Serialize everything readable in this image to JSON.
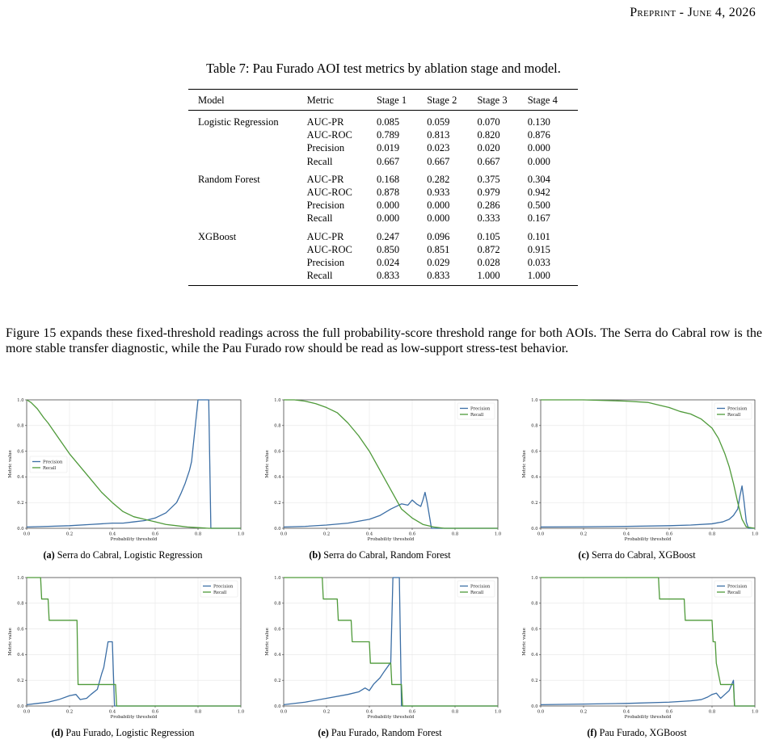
{
  "header": {
    "prefix": "Preprint - June 4, 2026"
  },
  "table": {
    "caption": "Table 7: Pau Furado AOI test metrics by ablation stage and model.",
    "columns": [
      "Model",
      "Metric",
      "Stage 1",
      "Stage 2",
      "Stage 3",
      "Stage 4"
    ],
    "groups": [
      {
        "model": "Logistic Regression",
        "rows": [
          {
            "metric": "AUC-PR",
            "values": [
              "0.085",
              "0.059",
              "0.070",
              "0.130"
            ]
          },
          {
            "metric": "AUC-ROC",
            "values": [
              "0.789",
              "0.813",
              "0.820",
              "0.876"
            ]
          },
          {
            "metric": "Precision",
            "values": [
              "0.019",
              "0.023",
              "0.020",
              "0.000"
            ]
          },
          {
            "metric": "Recall",
            "values": [
              "0.667",
              "0.667",
              "0.667",
              "0.000"
            ]
          }
        ]
      },
      {
        "model": "Random Forest",
        "rows": [
          {
            "metric": "AUC-PR",
            "values": [
              "0.168",
              "0.282",
              "0.375",
              "0.304"
            ]
          },
          {
            "metric": "AUC-ROC",
            "values": [
              "0.878",
              "0.933",
              "0.979",
              "0.942"
            ]
          },
          {
            "metric": "Precision",
            "values": [
              "0.000",
              "0.000",
              "0.286",
              "0.500"
            ]
          },
          {
            "metric": "Recall",
            "values": [
              "0.000",
              "0.000",
              "0.333",
              "0.167"
            ]
          }
        ]
      },
      {
        "model": "XGBoost",
        "rows": [
          {
            "metric": "AUC-PR",
            "values": [
              "0.247",
              "0.096",
              "0.105",
              "0.101"
            ]
          },
          {
            "metric": "AUC-ROC",
            "values": [
              "0.850",
              "0.851",
              "0.872",
              "0.915"
            ]
          },
          {
            "metric": "Precision",
            "values": [
              "0.024",
              "0.029",
              "0.028",
              "0.033"
            ]
          },
          {
            "metric": "Recall",
            "values": [
              "0.833",
              "0.833",
              "1.000",
              "1.000"
            ]
          }
        ]
      }
    ]
  },
  "paragraph": "Figure 15 expands these fixed-threshold readings across the full probability-score threshold range for both AOIs. The Serra do Cabral row is the more stable transfer diagnostic, while the Pau Furado row should be read as low-support stress-test behavior.",
  "colors": {
    "precision": "#3b6ea5",
    "recall": "#4f9a3a",
    "grid": "#e6e6e6"
  },
  "chart_data": [
    {
      "id": "a",
      "type": "line",
      "letter": "(a)",
      "caption": "Serra do Cabral, Logistic Regression",
      "xlabel": "Probability threshold",
      "ylabel": "Metric value",
      "xlim": [
        0,
        1
      ],
      "ylim": [
        0,
        1
      ],
      "xticks": [
        "0.0",
        "0.2",
        "0.4",
        "0.6",
        "0.8",
        "1.0"
      ],
      "yticks": [
        "0.0",
        "0.2",
        "0.4",
        "0.6",
        "0.8",
        "1.0"
      ],
      "legend": "center-left",
      "series": [
        {
          "name": "Precision",
          "color": "#3b6ea5",
          "x": [
            0,
            0.1,
            0.2,
            0.3,
            0.4,
            0.45,
            0.5,
            0.55,
            0.6,
            0.65,
            0.7,
            0.72,
            0.74,
            0.76,
            0.77,
            0.78,
            0.8,
            0.82,
            0.84,
            0.845,
            0.85,
            0.86,
            1.0
          ],
          "y": [
            0.01,
            0.015,
            0.02,
            0.03,
            0.04,
            0.04,
            0.05,
            0.06,
            0.08,
            0.12,
            0.2,
            0.27,
            0.35,
            0.45,
            0.52,
            0.68,
            1.0,
            1.0,
            1.0,
            1.0,
            1.0,
            0.0,
            0.0
          ]
        },
        {
          "name": "Recall",
          "color": "#4f9a3a",
          "x": [
            0,
            0.02,
            0.05,
            0.08,
            0.1,
            0.15,
            0.2,
            0.25,
            0.3,
            0.35,
            0.4,
            0.45,
            0.5,
            0.55,
            0.6,
            0.65,
            0.7,
            0.75,
            0.8,
            0.85,
            0.9,
            1.0
          ],
          "y": [
            1.0,
            0.98,
            0.93,
            0.86,
            0.82,
            0.7,
            0.58,
            0.48,
            0.38,
            0.28,
            0.2,
            0.13,
            0.09,
            0.07,
            0.05,
            0.03,
            0.02,
            0.01,
            0.005,
            0.0,
            0.0,
            0.0
          ]
        }
      ]
    },
    {
      "id": "b",
      "type": "line",
      "letter": "(b)",
      "caption": "Serra do Cabral, Random Forest",
      "xlabel": "Probability threshold",
      "ylabel": "Metric value",
      "xlim": [
        0,
        1
      ],
      "ylim": [
        0,
        1
      ],
      "xticks": [
        "0.0",
        "0.2",
        "0.4",
        "0.6",
        "0.8",
        "1.0"
      ],
      "yticks": [
        "0.0",
        "0.2",
        "0.4",
        "0.6",
        "0.8",
        "1.0"
      ],
      "legend": "top-right",
      "series": [
        {
          "name": "Precision",
          "color": "#3b6ea5",
          "x": [
            0,
            0.1,
            0.2,
            0.3,
            0.4,
            0.45,
            0.5,
            0.55,
            0.58,
            0.6,
            0.62,
            0.64,
            0.65,
            0.66,
            0.67,
            0.68,
            0.69,
            1.0
          ],
          "y": [
            0.01,
            0.015,
            0.025,
            0.04,
            0.07,
            0.1,
            0.15,
            0.19,
            0.18,
            0.22,
            0.19,
            0.17,
            0.22,
            0.28,
            0.2,
            0.1,
            0.0,
            0.0
          ]
        },
        {
          "name": "Recall",
          "color": "#4f9a3a",
          "x": [
            0,
            0.05,
            0.1,
            0.15,
            0.2,
            0.25,
            0.3,
            0.35,
            0.4,
            0.45,
            0.5,
            0.55,
            0.6,
            0.65,
            0.7,
            0.75,
            0.8,
            1.0
          ],
          "y": [
            1.0,
            1.0,
            0.99,
            0.97,
            0.94,
            0.9,
            0.82,
            0.72,
            0.6,
            0.45,
            0.3,
            0.15,
            0.08,
            0.03,
            0.01,
            0.0,
            0.0,
            0.0
          ]
        }
      ]
    },
    {
      "id": "c",
      "type": "line",
      "letter": "(c)",
      "caption": "Serra do Cabral, XGBoost",
      "xlabel": "Probability threshold",
      "ylabel": "Metric value",
      "xlim": [
        0,
        1
      ],
      "ylim": [
        0,
        1
      ],
      "xticks": [
        "0.0",
        "0.2",
        "0.4",
        "0.6",
        "0.8",
        "1.0"
      ],
      "yticks": [
        "0.0",
        "0.2",
        "0.4",
        "0.6",
        "0.8",
        "1.0"
      ],
      "legend": "top-right",
      "series": [
        {
          "name": "Precision",
          "color": "#3b6ea5",
          "x": [
            0,
            0.2,
            0.4,
            0.6,
            0.7,
            0.8,
            0.85,
            0.88,
            0.9,
            0.92,
            0.93,
            0.94,
            0.95,
            0.96,
            0.97,
            1.0
          ],
          "y": [
            0.01,
            0.012,
            0.015,
            0.02,
            0.025,
            0.035,
            0.05,
            0.07,
            0.1,
            0.15,
            0.25,
            0.33,
            0.2,
            0.05,
            0.0,
            0.0
          ]
        },
        {
          "name": "Recall",
          "color": "#4f9a3a",
          "x": [
            0,
            0.2,
            0.4,
            0.5,
            0.55,
            0.6,
            0.65,
            0.7,
            0.75,
            0.8,
            0.83,
            0.86,
            0.88,
            0.9,
            0.92,
            0.94,
            0.96,
            1.0
          ],
          "y": [
            1.0,
            1.0,
            0.99,
            0.98,
            0.96,
            0.94,
            0.91,
            0.89,
            0.85,
            0.78,
            0.7,
            0.58,
            0.48,
            0.35,
            0.2,
            0.07,
            0.01,
            0.0
          ]
        }
      ]
    },
    {
      "id": "d",
      "type": "line",
      "letter": "(d)",
      "caption": "Pau Furado, Logistic Regression",
      "xlabel": "Probability threshold",
      "ylabel": "Metric value",
      "xlim": [
        0,
        1
      ],
      "ylim": [
        0,
        1
      ],
      "xticks": [
        "0.0",
        "0.2",
        "0.4",
        "0.6",
        "0.8",
        "1.0"
      ],
      "yticks": [
        "0.0",
        "0.2",
        "0.4",
        "0.6",
        "0.8",
        "1.0"
      ],
      "legend": "top-right",
      "series": [
        {
          "name": "Precision",
          "color": "#3b6ea5",
          "x": [
            0,
            0.05,
            0.1,
            0.15,
            0.2,
            0.23,
            0.25,
            0.28,
            0.3,
            0.33,
            0.35,
            0.36,
            0.38,
            0.39,
            0.4,
            0.41,
            0.42,
            1.0
          ],
          "y": [
            0.01,
            0.02,
            0.03,
            0.05,
            0.08,
            0.09,
            0.05,
            0.06,
            0.09,
            0.13,
            0.25,
            0.3,
            0.5,
            0.5,
            0.5,
            0.0,
            0.0,
            0.0
          ]
        },
        {
          "name": "Recall",
          "color": "#4f9a3a",
          "x": [
            0,
            0.065,
            0.07,
            0.1,
            0.105,
            0.235,
            0.24,
            0.415,
            0.42,
            1.0
          ],
          "y": [
            1.0,
            1.0,
            0.833,
            0.833,
            0.667,
            0.667,
            0.167,
            0.167,
            0.0,
            0.0
          ]
        }
      ]
    },
    {
      "id": "e",
      "type": "line",
      "letter": "(e)",
      "caption": "Pau Furado, Random Forest",
      "xlabel": "Probability threshold",
      "ylabel": "Metric value",
      "xlim": [
        0,
        1
      ],
      "ylim": [
        0,
        1
      ],
      "xticks": [
        "0.0",
        "0.2",
        "0.4",
        "0.6",
        "0.8",
        "1.0"
      ],
      "yticks": [
        "0.0",
        "0.2",
        "0.4",
        "0.6",
        "0.8",
        "1.0"
      ],
      "legend": "top-right",
      "series": [
        {
          "name": "Precision",
          "color": "#3b6ea5",
          "x": [
            0,
            0.1,
            0.2,
            0.3,
            0.35,
            0.38,
            0.4,
            0.42,
            0.45,
            0.47,
            0.5,
            0.51,
            0.52,
            0.54,
            0.55,
            0.56,
            1.0
          ],
          "y": [
            0.01,
            0.03,
            0.06,
            0.09,
            0.11,
            0.14,
            0.12,
            0.17,
            0.22,
            0.27,
            0.34,
            1.0,
            1.0,
            1.0,
            0.0,
            0.0,
            0.0
          ]
        },
        {
          "name": "Recall",
          "color": "#4f9a3a",
          "x": [
            0,
            0.18,
            0.185,
            0.25,
            0.255,
            0.315,
            0.32,
            0.4,
            0.405,
            0.5,
            0.505,
            0.55,
            0.555,
            1.0
          ],
          "y": [
            1.0,
            1.0,
            0.833,
            0.833,
            0.667,
            0.667,
            0.5,
            0.5,
            0.333,
            0.333,
            0.167,
            0.167,
            0.0,
            0.0
          ]
        }
      ]
    },
    {
      "id": "f",
      "type": "line",
      "letter": "(f)",
      "caption": "Pau Furado, XGBoost",
      "xlabel": "Probability threshold",
      "ylabel": "Metric value",
      "xlim": [
        0,
        1
      ],
      "ylim": [
        0,
        1
      ],
      "xticks": [
        "0.0",
        "0.2",
        "0.4",
        "0.6",
        "0.8",
        "1.0"
      ],
      "yticks": [
        "0.0",
        "0.2",
        "0.4",
        "0.6",
        "0.8",
        "1.0"
      ],
      "legend": "top-right",
      "series": [
        {
          "name": "Precision",
          "color": "#3b6ea5",
          "x": [
            0,
            0.2,
            0.4,
            0.6,
            0.7,
            0.75,
            0.78,
            0.8,
            0.82,
            0.84,
            0.86,
            0.88,
            0.9,
            0.905,
            0.91,
            1.0
          ],
          "y": [
            0.01,
            0.015,
            0.02,
            0.03,
            0.04,
            0.05,
            0.07,
            0.09,
            0.1,
            0.06,
            0.09,
            0.12,
            0.2,
            0.0,
            0.0,
            0.0
          ]
        },
        {
          "name": "Recall",
          "color": "#4f9a3a",
          "x": [
            0,
            0.55,
            0.555,
            0.67,
            0.675,
            0.8,
            0.805,
            0.815,
            0.82,
            0.84,
            0.845,
            0.9,
            0.905,
            1.0
          ],
          "y": [
            1.0,
            1.0,
            0.833,
            0.833,
            0.667,
            0.667,
            0.5,
            0.5,
            0.333,
            0.167,
            0.167,
            0.167,
            0.0,
            0.0
          ]
        }
      ]
    }
  ]
}
